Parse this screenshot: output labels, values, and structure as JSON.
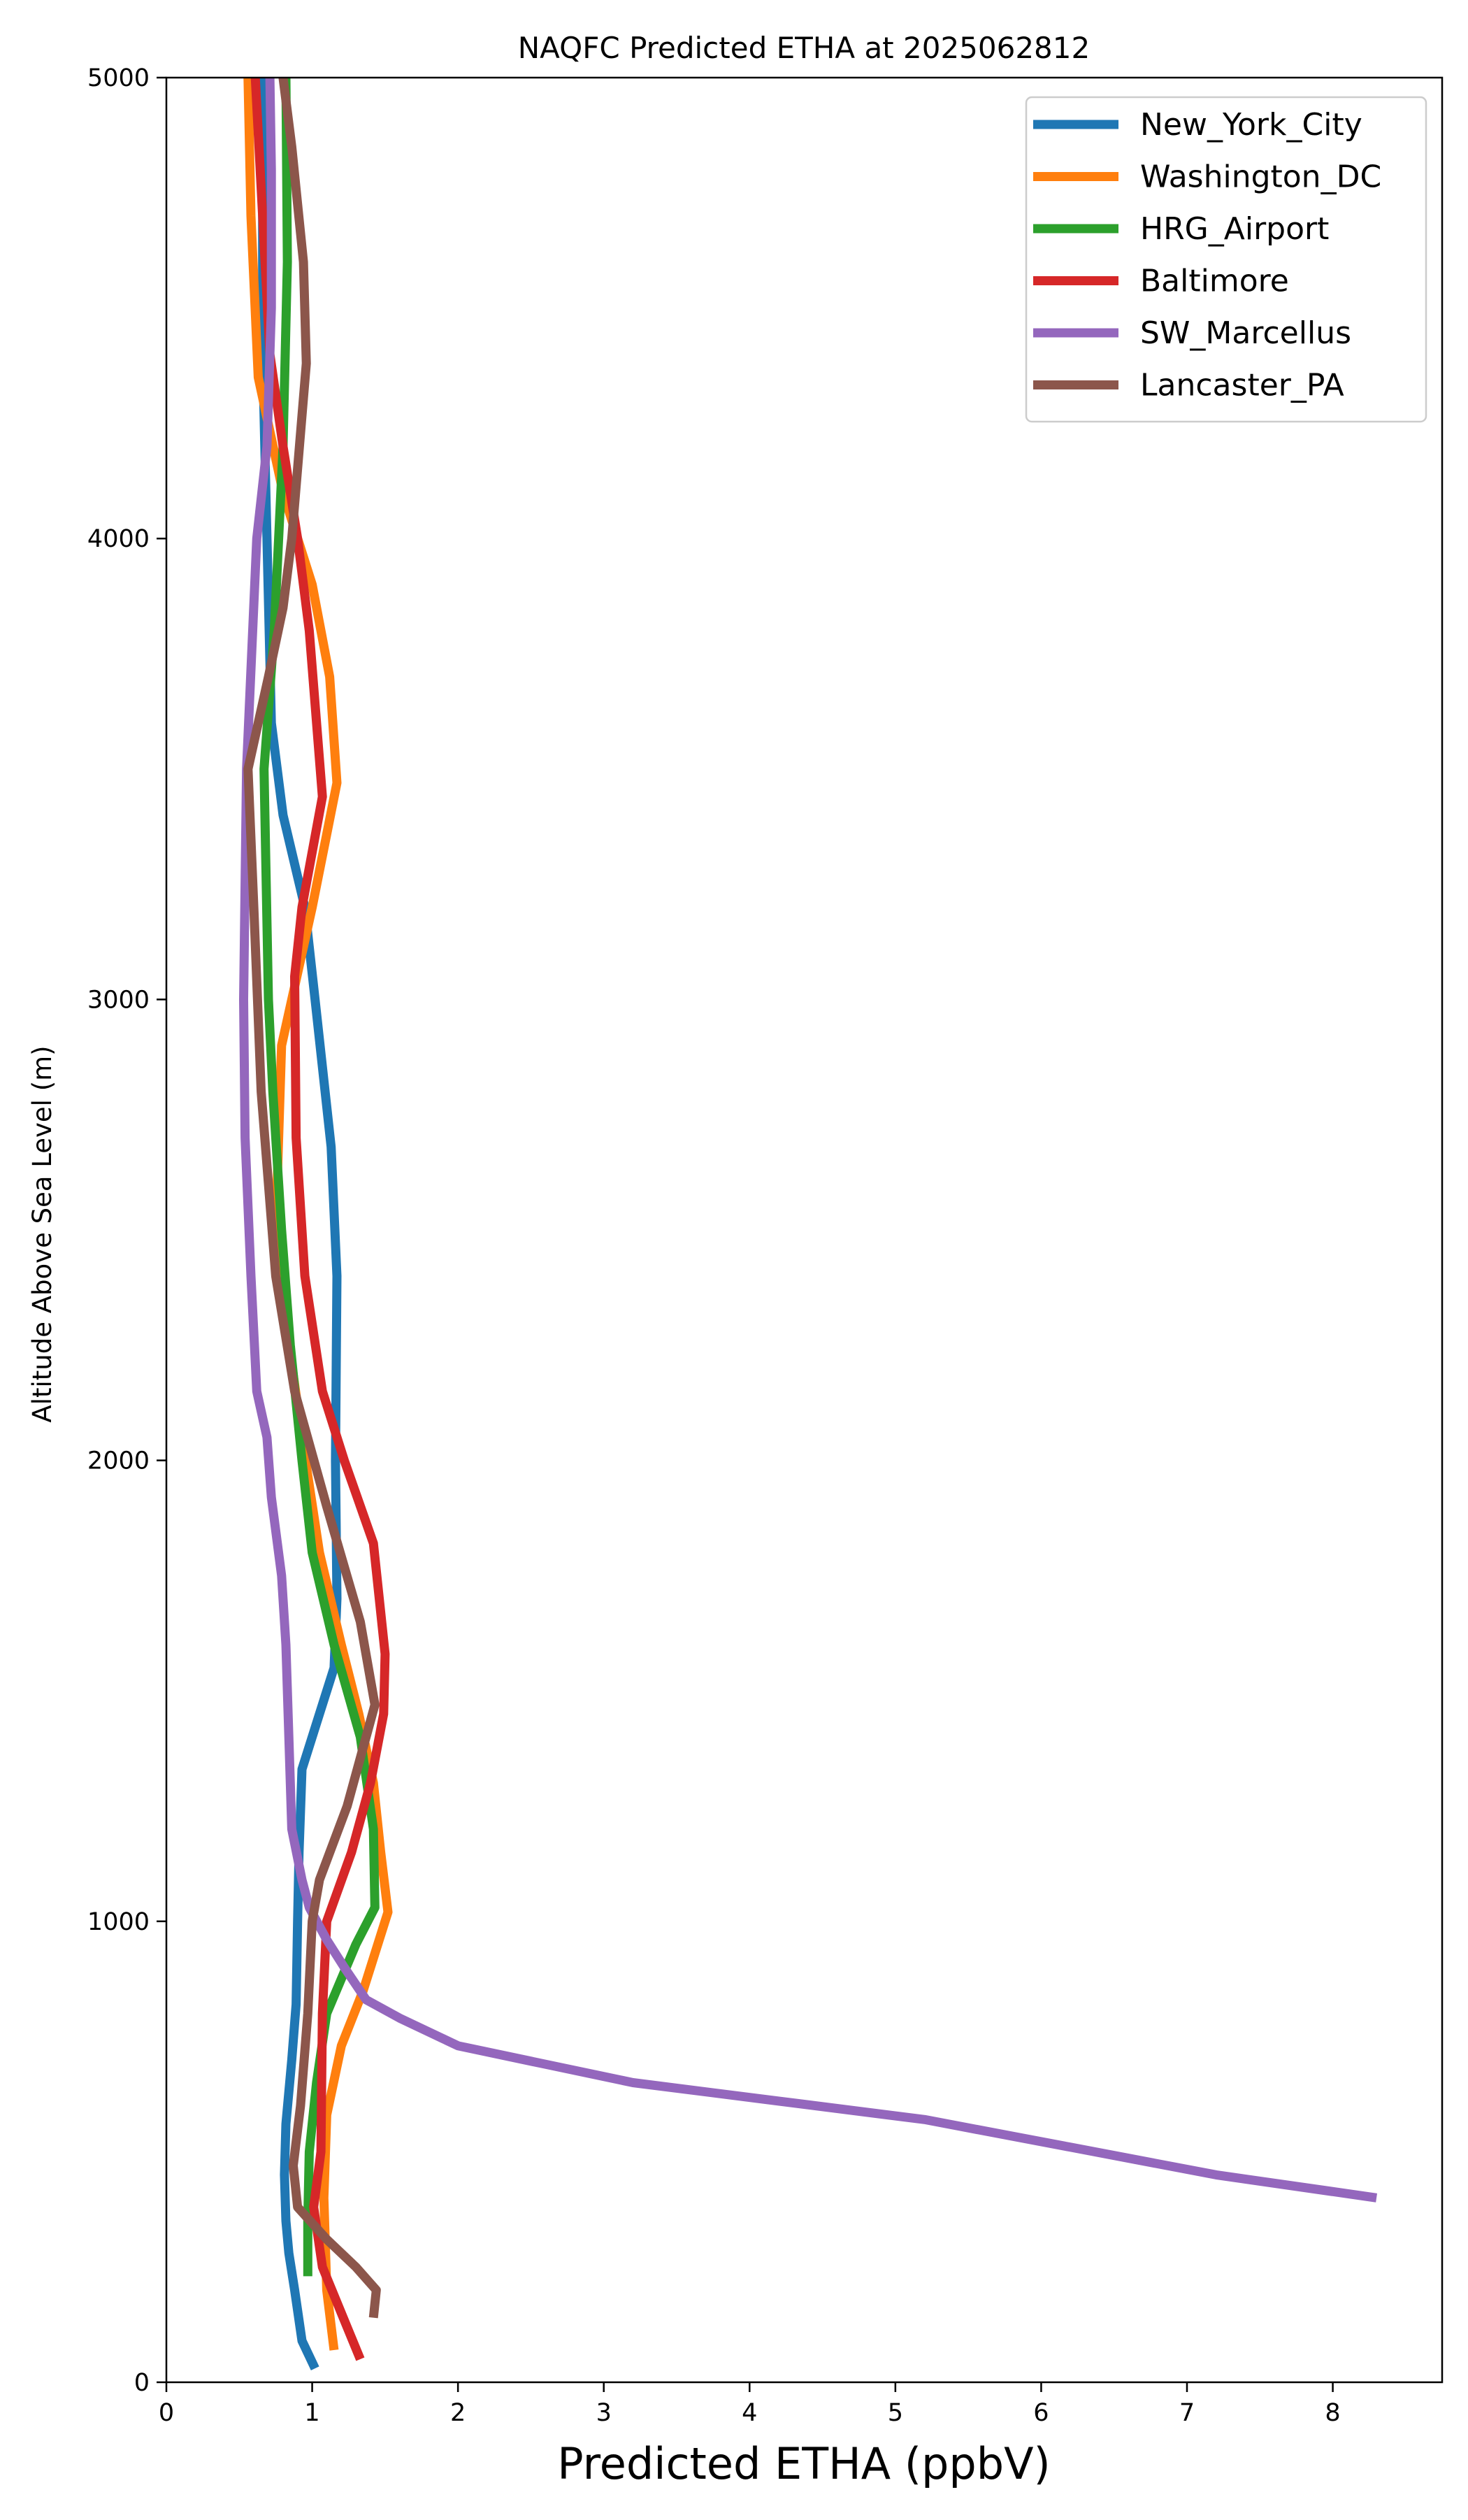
{
  "chart_data": {
    "type": "line",
    "title": "NAQFC Predicted ETHA at 2025062812",
    "xlabel": "Predicted ETHA (ppbV)",
    "ylabel": "Altitude Above Sea Level (m)",
    "xlim": [
      0,
      8.75
    ],
    "ylim": [
      0,
      5000
    ],
    "xticks": [
      0,
      1,
      2,
      3,
      4,
      5,
      6,
      7,
      8
    ],
    "yticks": [
      0,
      1000,
      2000,
      3000,
      4000,
      5000
    ],
    "xtick_labels": [
      "0",
      "1",
      "2",
      "3",
      "4",
      "5",
      "6",
      "7",
      "8"
    ],
    "ytick_labels": [
      "0",
      "1000",
      "2000",
      "3000",
      "4000",
      "5000"
    ],
    "grid": false,
    "legend_position": "top-right",
    "series": [
      {
        "name": "New_York_City",
        "color": "#1f77b4",
        "points": [
          [
            1.02,
            30
          ],
          [
            0.93,
            90
          ],
          [
            0.88,
            200
          ],
          [
            0.84,
            280
          ],
          [
            0.82,
            350
          ],
          [
            0.81,
            450
          ],
          [
            0.82,
            560
          ],
          [
            0.86,
            700
          ],
          [
            0.89,
            820
          ],
          [
            0.9,
            1000
          ],
          [
            0.91,
            1150
          ],
          [
            0.93,
            1330
          ],
          [
            1.05,
            1450
          ],
          [
            1.15,
            1550
          ],
          [
            1.17,
            1700
          ],
          [
            1.16,
            2000
          ],
          [
            1.17,
            2400
          ],
          [
            1.13,
            2680
          ],
          [
            1.02,
            3000
          ],
          [
            0.95,
            3200
          ],
          [
            0.8,
            3400
          ],
          [
            0.72,
            3600
          ],
          [
            0.69,
            4000
          ],
          [
            0.66,
            4400
          ],
          [
            0.66,
            5000
          ]
        ]
      },
      {
        "name": "Washington_DC",
        "color": "#ff7f0e",
        "points": [
          [
            1.15,
            70
          ],
          [
            1.1,
            200
          ],
          [
            1.08,
            400
          ],
          [
            1.1,
            580
          ],
          [
            1.2,
            730
          ],
          [
            1.35,
            850
          ],
          [
            1.52,
            1020
          ],
          [
            1.47,
            1150
          ],
          [
            1.42,
            1300
          ],
          [
            1.32,
            1450
          ],
          [
            1.2,
            1600
          ],
          [
            1.05,
            1800
          ],
          [
            0.93,
            2050
          ],
          [
            0.82,
            2300
          ],
          [
            0.76,
            2600
          ],
          [
            0.79,
            2900
          ],
          [
            1.0,
            3200
          ],
          [
            1.17,
            3470
          ],
          [
            1.12,
            3700
          ],
          [
            1.0,
            3900
          ],
          [
            0.8,
            4100
          ],
          [
            0.63,
            4350
          ],
          [
            0.58,
            4700
          ],
          [
            0.56,
            5000
          ]
        ]
      },
      {
        "name": "HRG_Airport",
        "color": "#2ca02c",
        "points": [
          [
            0.97,
            230
          ],
          [
            0.97,
            350
          ],
          [
            0.98,
            500
          ],
          [
            1.03,
            650
          ],
          [
            1.1,
            800
          ],
          [
            1.3,
            950
          ],
          [
            1.43,
            1030
          ],
          [
            1.42,
            1200
          ],
          [
            1.33,
            1400
          ],
          [
            1.15,
            1600
          ],
          [
            1.0,
            1800
          ],
          [
            0.93,
            2000
          ],
          [
            0.85,
            2250
          ],
          [
            0.79,
            2500
          ],
          [
            0.73,
            2800
          ],
          [
            0.7,
            3000
          ],
          [
            0.67,
            3500
          ],
          [
            0.74,
            3800
          ],
          [
            0.8,
            4200
          ],
          [
            0.83,
            4600
          ],
          [
            0.82,
            5000
          ]
        ]
      },
      {
        "name": "Baltimore",
        "color": "#d62728",
        "points": [
          [
            1.33,
            50
          ],
          [
            1.2,
            150
          ],
          [
            1.07,
            250
          ],
          [
            1.01,
            380
          ],
          [
            1.06,
            500
          ],
          [
            1.07,
            800
          ],
          [
            1.1,
            1000
          ],
          [
            1.27,
            1150
          ],
          [
            1.4,
            1300
          ],
          [
            1.49,
            1450
          ],
          [
            1.5,
            1580
          ],
          [
            1.42,
            1820
          ],
          [
            1.22,
            2000
          ],
          [
            1.07,
            2150
          ],
          [
            0.95,
            2400
          ],
          [
            0.89,
            2700
          ],
          [
            0.88,
            3050
          ],
          [
            0.93,
            3200
          ],
          [
            1.07,
            3440
          ],
          [
            0.98,
            3800
          ],
          [
            0.9,
            4000
          ],
          [
            0.8,
            4200
          ],
          [
            0.71,
            4400
          ],
          [
            0.66,
            4700
          ],
          [
            0.61,
            5000
          ]
        ]
      },
      {
        "name": "SW_Marcellus",
        "color": "#9467bd",
        "points": [
          [
            8.3,
            400
          ],
          [
            7.2,
            450
          ],
          [
            6.2,
            510
          ],
          [
            5.2,
            570
          ],
          [
            4.2,
            610
          ],
          [
            3.2,
            650
          ],
          [
            2.6,
            690
          ],
          [
            2.0,
            730
          ],
          [
            1.8,
            760
          ],
          [
            1.6,
            790
          ],
          [
            1.37,
            830
          ],
          [
            1.22,
            900
          ],
          [
            1.1,
            960
          ],
          [
            0.98,
            1030
          ],
          [
            0.93,
            1090
          ],
          [
            0.86,
            1200
          ],
          [
            0.84,
            1400
          ],
          [
            0.82,
            1600
          ],
          [
            0.79,
            1750
          ],
          [
            0.72,
            1920
          ],
          [
            0.69,
            2050
          ],
          [
            0.62,
            2150
          ],
          [
            0.58,
            2400
          ],
          [
            0.54,
            2700
          ],
          [
            0.53,
            3000
          ],
          [
            0.55,
            3500
          ],
          [
            0.62,
            4000
          ],
          [
            0.69,
            4200
          ],
          [
            0.72,
            4500
          ],
          [
            0.72,
            4800
          ],
          [
            0.71,
            5000
          ]
        ]
      },
      {
        "name": "Lancaster_PA",
        "color": "#8c564b",
        "points": [
          [
            1.42,
            140
          ],
          [
            1.44,
            200
          ],
          [
            1.3,
            250
          ],
          [
            1.1,
            310
          ],
          [
            0.9,
            380
          ],
          [
            0.87,
            470
          ],
          [
            0.92,
            600
          ],
          [
            0.97,
            800
          ],
          [
            1.0,
            1000
          ],
          [
            1.05,
            1090
          ],
          [
            1.24,
            1250
          ],
          [
            1.37,
            1400
          ],
          [
            1.43,
            1470
          ],
          [
            1.33,
            1650
          ],
          [
            1.1,
            1900
          ],
          [
            0.88,
            2150
          ],
          [
            0.75,
            2400
          ],
          [
            0.65,
            2800
          ],
          [
            0.6,
            3200
          ],
          [
            0.56,
            3500
          ],
          [
            0.7,
            3700
          ],
          [
            0.8,
            3850
          ],
          [
            0.86,
            4000
          ],
          [
            0.96,
            4380
          ],
          [
            0.94,
            4600
          ],
          [
            0.86,
            4850
          ],
          [
            0.8,
            5000
          ]
        ]
      }
    ]
  }
}
